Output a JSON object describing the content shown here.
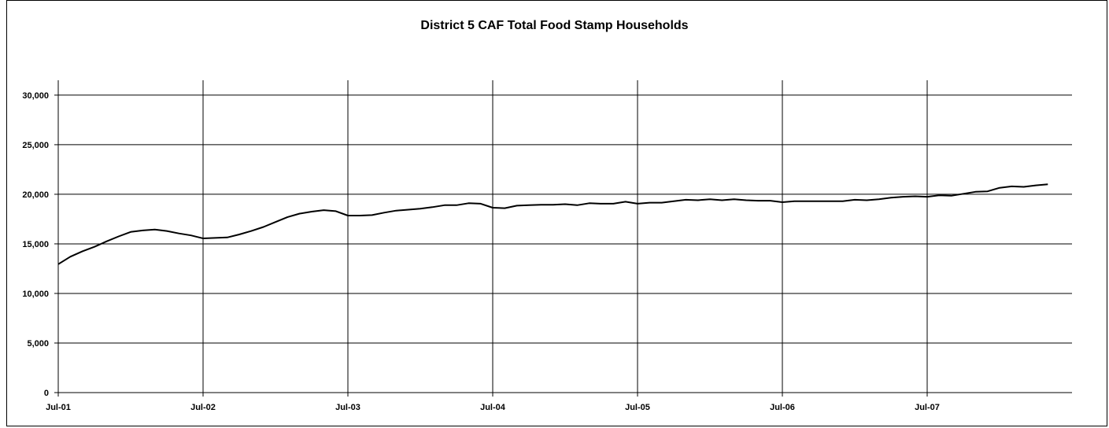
{
  "chart_data": {
    "type": "line",
    "title": "District 5 CAF Total Food Stamp Households",
    "xlabel": "",
    "ylabel": "",
    "ylim": [
      0,
      31500
    ],
    "yticks": [
      0,
      5000,
      10000,
      15000,
      20000,
      25000,
      30000
    ],
    "ytick_labels": [
      "0",
      "5,000",
      "10,000",
      "15,000",
      "20,000",
      "25,000",
      "30,000"
    ],
    "xtick_labels": [
      "Jul-01",
      "Jul-02",
      "Jul-03",
      "Jul-04",
      "Jul-05",
      "Jul-06",
      "Jul-07"
    ],
    "grid": true,
    "line_color": "#000000",
    "x_units": "months since Jul-01",
    "series": [
      {
        "values": [
          12950,
          13700,
          14250,
          14700,
          15250,
          15750,
          16200,
          16350,
          16450,
          16300,
          16050,
          15850,
          15550,
          15600,
          15650,
          15950,
          16300,
          16700,
          17200,
          17700,
          18050,
          18250,
          18400,
          18300,
          17850,
          17850,
          17900,
          18150,
          18350,
          18450,
          18550,
          18700,
          18900,
          18900,
          19100,
          19050,
          18650,
          18600,
          18850,
          18900,
          18950,
          18950,
          19000,
          18900,
          19100,
          19050,
          19050,
          19250,
          19050,
          19150,
          19150,
          19300,
          19450,
          19400,
          19500,
          19400,
          19500,
          19400,
          19350,
          19350,
          19200,
          19300,
          19300,
          19300,
          19300,
          19300,
          19450,
          19400,
          19500,
          19650,
          19750,
          19800,
          19750,
          19900,
          19850,
          20050,
          20250,
          20300,
          20650,
          20800,
          20750,
          20900,
          21000
        ]
      }
    ]
  }
}
